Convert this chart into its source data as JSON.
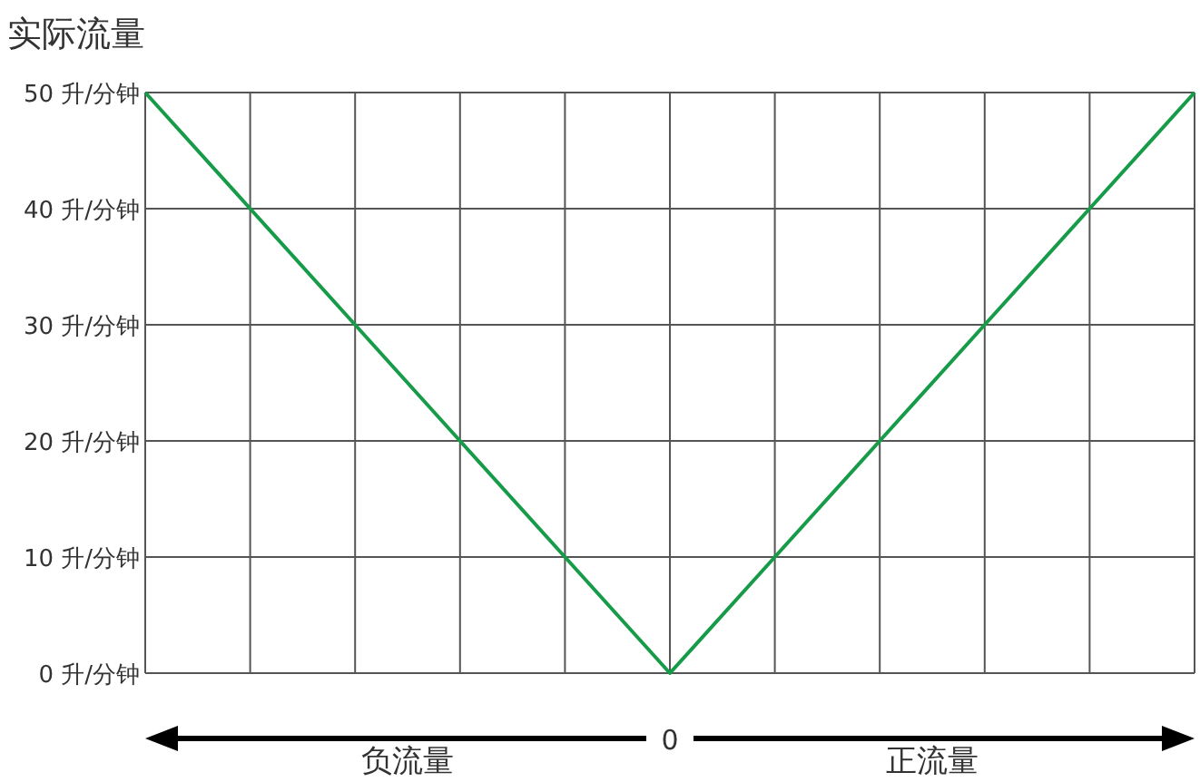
{
  "chart_data": {
    "type": "line",
    "ylabel": "实际流量",
    "categories": [
      null,
      null,
      null,
      null,
      null,
      "0",
      null,
      null,
      null,
      null,
      null
    ],
    "series": [
      {
        "color": "#169b48",
        "values": [
          50,
          40,
          30,
          20,
          10,
          0,
          10,
          20,
          30,
          40,
          50
        ]
      }
    ],
    "ylim": [
      0,
      50
    ],
    "yticks": [
      {
        "value": 0,
        "label": "0 升/分钟"
      },
      {
        "value": 10,
        "label": "10 升/分钟"
      },
      {
        "value": 20,
        "label": "20 升/分钟"
      },
      {
        "value": 30,
        "label": "30 升/分钟"
      },
      {
        "value": 40,
        "label": "40 升/分钟"
      },
      {
        "value": 50,
        "label": "50 升/分钟"
      }
    ],
    "grid": true,
    "marker": "none",
    "line_style": "solid",
    "annotations": [
      "负流量",
      "正流量"
    ]
  }
}
